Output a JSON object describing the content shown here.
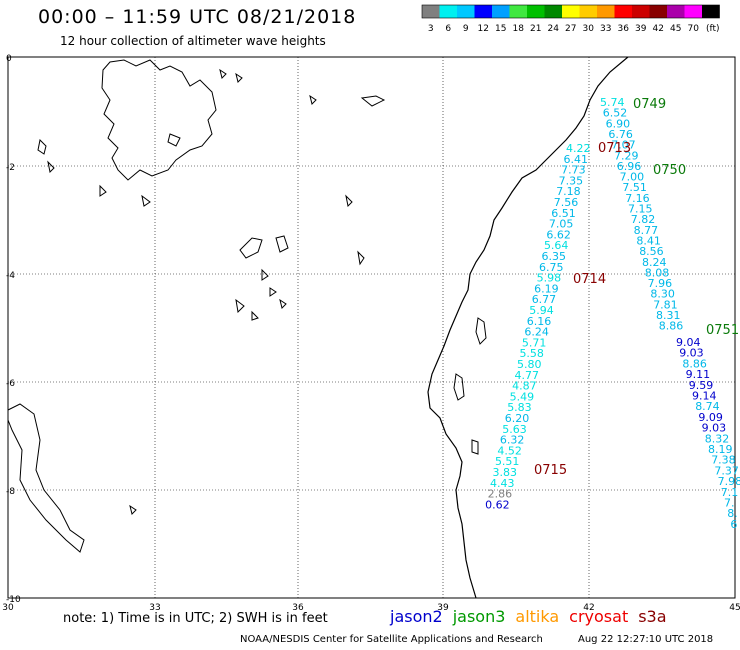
{
  "header": {
    "title": "00:00 – 11:59 UTC 08/21/2018",
    "subtitle": "12 hour collection of altimeter wave heights"
  },
  "legend": {
    "colors": [
      "#808080",
      "#00f0f0",
      "#00c8ff",
      "#0000ff",
      "#00a0ff",
      "#40e840",
      "#00c000",
      "#008800",
      "#ffff00",
      "#ffcc00",
      "#ff9900",
      "#ff0000",
      "#cc0000",
      "#880000",
      "#aa00aa",
      "#ff00ff",
      "#000000"
    ],
    "labels": [
      "3",
      "6",
      "9",
      "12",
      "15",
      "18",
      "21",
      "24",
      "27",
      "30",
      "33",
      "36",
      "39",
      "42",
      "45",
      "70",
      "(ft)"
    ]
  },
  "map": {
    "lat_labels": [
      "0",
      "-2",
      "-4",
      "-6",
      "-8",
      "-10"
    ],
    "lon_labels": [
      "30",
      "33",
      "36",
      "39",
      "42",
      "45"
    ],
    "tracks": [
      {
        "time": "0749",
        "time_color": "#0a7a0a",
        "points": [
          {
            "v": "5.74",
            "c": "#00e0e0"
          },
          {
            "v": "6.52",
            "c": "#00b8e8"
          },
          {
            "v": "6.90",
            "c": "#00b8e8"
          },
          {
            "v": "6.76",
            "c": "#00b8e8"
          },
          {
            "v": "7.07",
            "c": "#00b8e8"
          },
          {
            "v": "7.29",
            "c": "#00b8e8"
          },
          {
            "v": "6.96",
            "c": "#00b8e8"
          },
          {
            "v": "7.00",
            "c": "#00b8e8"
          },
          {
            "v": "7.51",
            "c": "#00b8e8"
          },
          {
            "v": "7.16",
            "c": "#00b8e8"
          },
          {
            "v": "7.15",
            "c": "#00b8e8"
          },
          {
            "v": "7.82",
            "c": "#00b8e8"
          },
          {
            "v": "8.77",
            "c": "#00b8e8"
          },
          {
            "v": "8.41",
            "c": "#00b8e8"
          },
          {
            "v": "8.56",
            "c": "#00b8e8"
          },
          {
            "v": "8.24",
            "c": "#00b8e8"
          },
          {
            "v": "8.08",
            "c": "#00b8e8"
          },
          {
            "v": "7.96",
            "c": "#00b8e8"
          },
          {
            "v": "8.30",
            "c": "#00b8e8"
          },
          {
            "v": "7.81",
            "c": "#00b8e8"
          },
          {
            "v": "8.31",
            "c": "#00b8e8"
          },
          {
            "v": "8.86",
            "c": "#00b8e8"
          }
        ]
      },
      {
        "time": "0750",
        "time_color": "#0a7a0a"
      },
      {
        "time": "0751",
        "time_color": "#0a7a0a",
        "points": [
          {
            "v": "9.04",
            "c": "#0000cc"
          },
          {
            "v": "9.03",
            "c": "#0000cc"
          },
          {
            "v": "8.86",
            "c": "#00b8e8"
          },
          {
            "v": "9.11",
            "c": "#0000cc"
          },
          {
            "v": "9.59",
            "c": "#0000cc"
          },
          {
            "v": "9.14",
            "c": "#0000cc"
          },
          {
            "v": "8.74",
            "c": "#00b8e8"
          },
          {
            "v": "9.09",
            "c": "#0000cc"
          },
          {
            "v": "9.03",
            "c": "#0000cc"
          },
          {
            "v": "8.32",
            "c": "#00b8e8"
          },
          {
            "v": "8.19",
            "c": "#00b8e8"
          },
          {
            "v": "7.38",
            "c": "#00b8e8"
          },
          {
            "v": "7.37",
            "c": "#00b8e8"
          },
          {
            "v": "7.98",
            "c": "#00b8e8"
          },
          {
            "v": "7.1",
            "c": "#00b8e8"
          },
          {
            "v": "7.",
            "c": "#00b8e8"
          },
          {
            "v": "8.",
            "c": "#00b8e8"
          },
          {
            "v": "6",
            "c": "#00b8e8"
          }
        ]
      },
      {
        "time": "0713",
        "time_color": "#880000",
        "points": [
          {
            "v": "4.22",
            "c": "#00e0e0"
          },
          {
            "v": "6.41",
            "c": "#00b8e8"
          },
          {
            "v": "7.73",
            "c": "#00b8e8"
          },
          {
            "v": "7.35",
            "c": "#00b8e8"
          },
          {
            "v": "7.18",
            "c": "#00b8e8"
          },
          {
            "v": "7.56",
            "c": "#00b8e8"
          },
          {
            "v": "6.51",
            "c": "#00b8e8"
          },
          {
            "v": "7.05",
            "c": "#00b8e8"
          },
          {
            "v": "6.62",
            "c": "#00b8e8"
          },
          {
            "v": "5.64",
            "c": "#00e0e0"
          },
          {
            "v": "6.35",
            "c": "#00b8e8"
          },
          {
            "v": "6.75",
            "c": "#00b8e8"
          },
          {
            "v": "5.98",
            "c": "#00e0e0"
          },
          {
            "v": "6.19",
            "c": "#00b8e8"
          },
          {
            "v": "6.77",
            "c": "#00b8e8"
          },
          {
            "v": "5.94",
            "c": "#00e0e0"
          },
          {
            "v": "6.16",
            "c": "#00b8e8"
          },
          {
            "v": "6.24",
            "c": "#00b8e8"
          },
          {
            "v": "5.71",
            "c": "#00e0e0"
          },
          {
            "v": "5.58",
            "c": "#00e0e0"
          },
          {
            "v": "5.80",
            "c": "#00e0e0"
          },
          {
            "v": "4.77",
            "c": "#00e0e0"
          },
          {
            "v": "4.87",
            "c": "#00e0e0"
          },
          {
            "v": "5.49",
            "c": "#00e0e0"
          },
          {
            "v": "5.83",
            "c": "#00e0e0"
          },
          {
            "v": "6.20",
            "c": "#00b8e8"
          },
          {
            "v": "5.63",
            "c": "#00e0e0"
          },
          {
            "v": "6.32",
            "c": "#00b8e8"
          },
          {
            "v": "4.52",
            "c": "#00e0e0"
          },
          {
            "v": "5.51",
            "c": "#00e0e0"
          },
          {
            "v": "3.83",
            "c": "#00e0e0"
          },
          {
            "v": "4.43",
            "c": "#00e0e0"
          },
          {
            "v": "2.86",
            "c": "#808080"
          },
          {
            "v": "0.62",
            "c": "#0000cc"
          }
        ]
      },
      {
        "time": "0714",
        "time_color": "#880000"
      },
      {
        "time": "0715",
        "time_color": "#880000"
      }
    ]
  },
  "note": "note: 1) Time is in UTC; 2) SWH is in feet",
  "satellites": [
    {
      "name": "jason2",
      "color": "#0000cc"
    },
    {
      "name": "jason3",
      "color": "#009900"
    },
    {
      "name": "altika",
      "color": "#ff9900"
    },
    {
      "name": "cryosat",
      "color": "#ee0000"
    },
    {
      "name": "s3a",
      "color": "#880000"
    }
  ],
  "footer": {
    "left": "NOAA/NESDIS Center for Satellite Applications and Research",
    "right": "Aug 22 12:27:10 UTC 2018"
  }
}
